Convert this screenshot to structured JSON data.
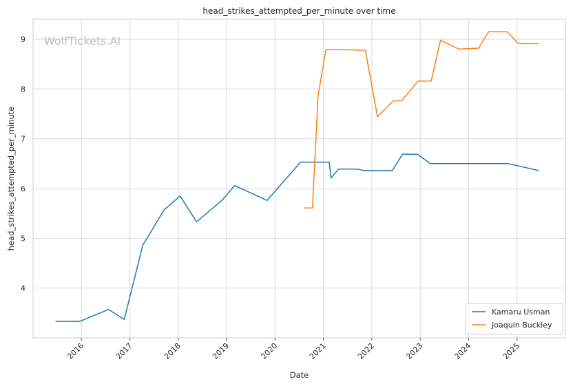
{
  "watermark": "WolfTickets.AI",
  "chart_data": {
    "type": "line",
    "title": "head_strikes_attempted_per_minute over time",
    "xlabel": "Date",
    "ylabel": "head_strikes_attempted_per_minute",
    "xlim": [
      "2015-01-01",
      "2026-01-01"
    ],
    "ylim": [
      3.0,
      9.4
    ],
    "x_ticks": [
      "2016",
      "2017",
      "2018",
      "2019",
      "2020",
      "2021",
      "2022",
      "2023",
      "2024",
      "2025"
    ],
    "y_ticks": [
      4,
      5,
      6,
      7,
      8,
      9
    ],
    "grid": true,
    "legend_position": "bottom-right",
    "series": [
      {
        "name": "Kamaru Usman",
        "color": "#1f77b4",
        "points": [
          [
            "2015-06-20",
            3.33
          ],
          [
            "2015-12-19",
            3.33
          ],
          [
            "2016-07-23",
            3.57
          ],
          [
            "2016-11-19",
            3.37
          ],
          [
            "2017-04-08",
            4.86
          ],
          [
            "2017-09-16",
            5.57
          ],
          [
            "2018-01-14",
            5.85
          ],
          [
            "2018-05-19",
            5.33
          ],
          [
            "2018-11-30",
            5.77
          ],
          [
            "2019-03-02",
            6.06
          ],
          [
            "2019-11-02",
            5.76
          ],
          [
            "2020-07-12",
            6.53
          ],
          [
            "2021-02-13",
            6.53
          ],
          [
            "2021-02-27",
            6.21
          ],
          [
            "2021-04-24",
            6.39
          ],
          [
            "2021-09-10",
            6.39
          ],
          [
            "2021-11-06",
            6.36
          ],
          [
            "2022-06-04",
            6.36
          ],
          [
            "2022-08-20",
            6.69
          ],
          [
            "2022-12-10",
            6.69
          ],
          [
            "2023-03-18",
            6.5
          ],
          [
            "2023-09-30",
            6.5
          ],
          [
            "2024-10-26",
            6.5
          ],
          [
            "2025-06-14",
            6.36
          ]
        ]
      },
      {
        "name": "Joaquin Buckley",
        "color": "#ff7f0e",
        "points": [
          [
            "2020-08-08",
            5.61
          ],
          [
            "2020-10-10",
            5.61
          ],
          [
            "2020-11-21",
            7.86
          ],
          [
            "2021-01-20",
            8.79
          ],
          [
            "2021-04-24",
            8.79
          ],
          [
            "2021-10-16",
            8.78
          ],
          [
            "2021-11-13",
            8.78
          ],
          [
            "2022-02-12",
            7.44
          ],
          [
            "2022-06-11",
            7.76
          ],
          [
            "2022-08-13",
            7.76
          ],
          [
            "2022-12-17",
            8.16
          ],
          [
            "2023-03-25",
            8.16
          ],
          [
            "2023-06-03",
            8.98
          ],
          [
            "2023-10-21",
            8.8
          ],
          [
            "2024-03-16",
            8.82
          ],
          [
            "2024-06-01",
            9.15
          ],
          [
            "2024-10-19",
            9.15
          ],
          [
            "2025-01-11",
            8.91
          ],
          [
            "2025-06-14",
            8.91
          ]
        ]
      }
    ]
  }
}
